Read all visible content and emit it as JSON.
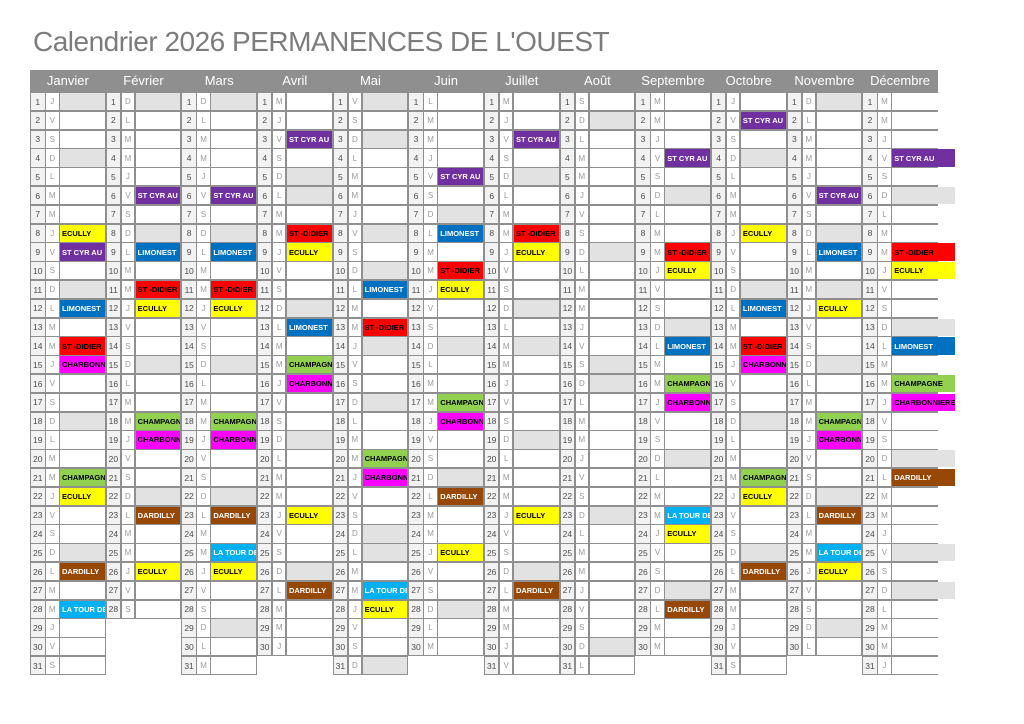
{
  "title": "Calendrier 2026 PERMANENCES DE L'OUEST",
  "year": "2026",
  "colors": {
    "header_bg": "#8f8f8f",
    "grid_line": "#8f8f8f",
    "holiday_fill": "#e2e2e2",
    "title_text": "#7c7c7c"
  },
  "weekday_letters_note": "L=lundi M=mardi M=mercredi J=jeudi V=vendredi S=samedi D=dimanche",
  "pharmacies": {
    "ECULLY": {
      "label": "ECULLY",
      "bg": "#FFFF00",
      "fg": "#000000"
    },
    "ST_CYR": {
      "label": "ST CYR AU",
      "bg": "#7030A0",
      "fg": "#FFFFFF"
    },
    "LIMONEST": {
      "label": "LIMONEST",
      "bg": "#0070C0",
      "fg": "#FFFFFF"
    },
    "ST_DIDIER": {
      "label": "ST -DIDIER",
      "bg": "#FF0000",
      "fg": "#000000"
    },
    "CHARBONNIERE": {
      "label": "CHARBONNIERE",
      "bg": "#FF00FF",
      "fg": "#000000"
    },
    "CHAMPAGNE": {
      "label": "CHAMPAGNE",
      "bg": "#92D050",
      "fg": "#000000"
    },
    "DARDILLY": {
      "label": "DARDILLY",
      "bg": "#974706",
      "fg": "#FFFFFF"
    },
    "LA_TOUR": {
      "label": "LA TOUR DE",
      "bg": "#00B0F0",
      "fg": "#FFFFFF"
    }
  },
  "months": [
    {
      "name": "Janvier",
      "days": 31,
      "weekdays": "JVSDLMMJVSDLMMJVSDLMMJVSDLMMJVS",
      "holidays": [
        1
      ],
      "events": {
        "8": "ECULLY",
        "9": "ST_CYR",
        "12": "LIMONEST",
        "14": "ST_DIDIER",
        "15": "CHARBONNIERE",
        "21": "CHAMPAGNE",
        "22": "ECULLY",
        "26": "DARDILLY",
        "28": "LA_TOUR"
      }
    },
    {
      "name": "Février",
      "days": 28,
      "weekdays": "DLMMJVSDLMMJVSDLMMJVSDLMMJVS",
      "holidays": [],
      "events": {
        "6": "ST_CYR",
        "9": "LIMONEST",
        "11": "ST_DIDIER",
        "12": "ECULLY",
        "18": "CHAMPAGNE",
        "19": "CHARBONNIERE",
        "23": "DARDILLY",
        "26": "ECULLY"
      }
    },
    {
      "name": "Mars",
      "days": 31,
      "weekdays": "DLMMJVSDLMMJVSDLMMJVSDLMMJVSDLM",
      "holidays": [],
      "events": {
        "6": "ST_CYR",
        "9": "LIMONEST",
        "11": "ST_DIDIER",
        "12": "ECULLY",
        "18": "CHAMPAGNE",
        "19": "CHARBONNIERE",
        "23": "DARDILLY",
        "25": "LA_TOUR",
        "26": "ECULLY"
      }
    },
    {
      "name": "Avril",
      "days": 30,
      "weekdays": "MJVSDLMMJVSDLMMJVSDLMMJVSDLMMJ",
      "holidays": [
        6
      ],
      "events": {
        "3": "ST_CYR",
        "8": "ST_DIDIER",
        "9": "ECULLY",
        "13": "LIMONEST",
        "15": "CHAMPAGNE",
        "16": "CHARBONNIERE",
        "23": "ECULLY",
        "27": "DARDILLY"
      }
    },
    {
      "name": "Mai",
      "days": 31,
      "weekdays": "VSDLMMJVSDLMMJVSDLMMJVSDLMMJVSD",
      "holidays": [
        1,
        8,
        14,
        25
      ],
      "events": {
        "11": "LIMONEST",
        "13": "ST_DIDIER",
        "20": "CHAMPAGNE",
        "21": "CHARBONNIERE",
        "27": "LA_TOUR",
        "28": "ECULLY"
      }
    },
    {
      "name": "Juin",
      "days": 30,
      "weekdays": "LMMJVSDLMMJVSDLMMJVSDLMMJVSDLM",
      "holidays": [],
      "events": {
        "5": "ST_CYR",
        "8": "LIMONEST",
        "10": "ST_DIDIER",
        "11": "ECULLY",
        "17": "CHAMPAGNE",
        "18": "CHARBONNIERE",
        "22": "DARDILLY",
        "25": "ECULLY"
      }
    },
    {
      "name": "Juillet",
      "days": 31,
      "weekdays": "MJVSDLMMJVSDLMMJVSDLMMJVSDLMMJV",
      "holidays": [
        14
      ],
      "events": {
        "3": "ST_CYR",
        "8": "ST_DIDIER",
        "9": "ECULLY",
        "23": "ECULLY",
        "27": "DARDILLY"
      }
    },
    {
      "name": "Août",
      "days": 31,
      "weekdays": "SDLMMJVSDLMMJVSDLMMJVSDLMMJVSDL",
      "holidays": [
        15
      ],
      "events": {}
    },
    {
      "name": "Septembre",
      "days": 30,
      "weekdays": "MMJVSDLMMJVSDLMMJVSDLMMJVSDLMM",
      "holidays": [],
      "events": {
        "4": "ST_CYR",
        "9": "ST_DIDIER",
        "10": "ECULLY",
        "14": "LIMONEST",
        "16": "CHAMPAGNE",
        "17": "CHARBONNIERE",
        "23": "LA_TOUR",
        "24": "ECULLY",
        "28": "DARDILLY"
      }
    },
    {
      "name": "Octobre",
      "days": 31,
      "weekdays": "JVSDLMMJVSDLMMJVSDLMMJVSDLMMJVS",
      "holidays": [],
      "events": {
        "2": "ST_CYR",
        "8": "ECULLY",
        "12": "LIMONEST",
        "14": "ST_DIDIER",
        "15": "CHARBONNIERE",
        "21": "CHAMPAGNE",
        "22": "ECULLY",
        "26": "DARDILLY"
      }
    },
    {
      "name": "Novembre",
      "days": 30,
      "weekdays": "DLMMJVSDLMMJVSDLMMJVSDLMMJVSDL",
      "holidays": [
        11
      ],
      "events": {
        "6": "ST_CYR",
        "9": "LIMONEST",
        "12": "ECULLY",
        "18": "CHAMPAGNE",
        "19": "CHARBONNIERE",
        "23": "DARDILLY",
        "25": "LA_TOUR",
        "26": "ECULLY"
      }
    },
    {
      "name": "Décembre",
      "days": 31,
      "weekdays": "MMJVSDLMMJVSDLMMJVSDLMMJVSDLMMJ",
      "holidays": [
        25
      ],
      "events": {
        "4": "ST_CYR",
        "9": "ST_DIDIER",
        "10": "ECULLY",
        "14": "LIMONEST",
        "16": "CHAMPAGNE",
        "17": "CHARBONNIERE",
        "21": "DARDILLY"
      }
    }
  ]
}
